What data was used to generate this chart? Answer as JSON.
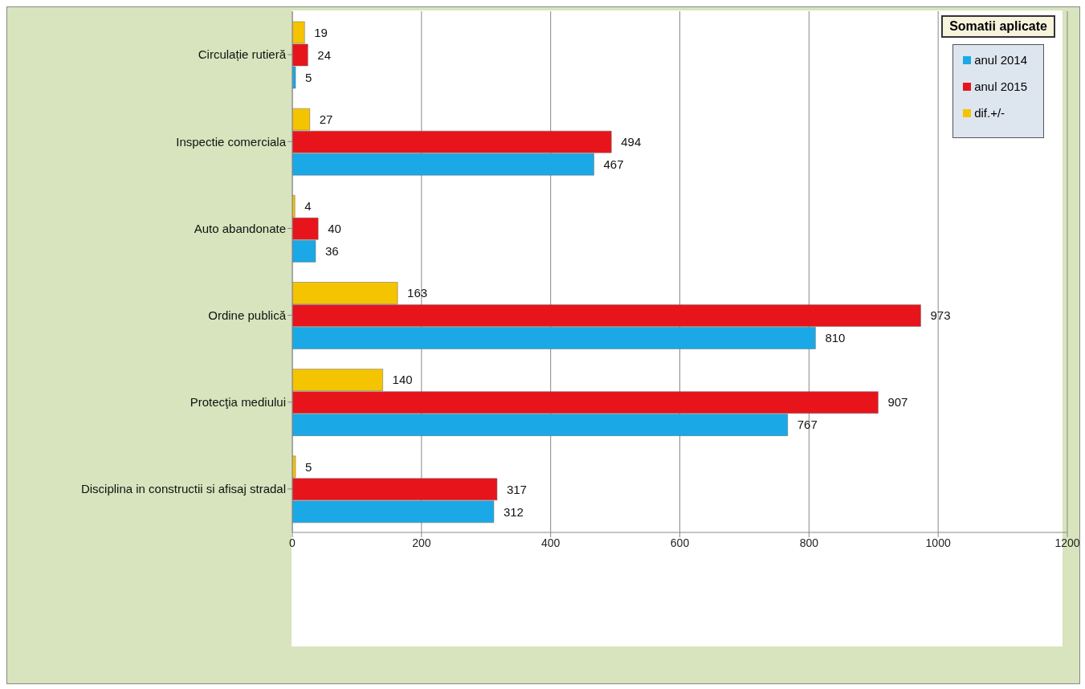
{
  "chart_data": {
    "type": "bar",
    "orientation": "horizontal",
    "legend_title": "Somatii aplicate",
    "categories": [
      "Circulație rutieră",
      "Inspectie comerciala",
      "Auto abandonate",
      "Ordine publică",
      "Protecţia mediului",
      "Disciplina in constructii si afisaj stradal"
    ],
    "series": [
      {
        "name": "dif.+/-",
        "color": "#f5c400",
        "values": [
          19,
          27,
          4,
          163,
          140,
          5
        ]
      },
      {
        "name": "anul 2015",
        "color": "#e8141b",
        "values": [
          24,
          494,
          40,
          973,
          907,
          317
        ]
      },
      {
        "name": "anul 2014",
        "color": "#1aa9e6",
        "values": [
          5,
          467,
          36,
          810,
          767,
          312
        ]
      }
    ],
    "xlim": [
      0,
      1200
    ],
    "xticks": [
      0,
      200,
      400,
      600,
      800,
      1000,
      1200
    ],
    "grid": "x",
    "legend": "top right",
    "data_labels": true
  }
}
